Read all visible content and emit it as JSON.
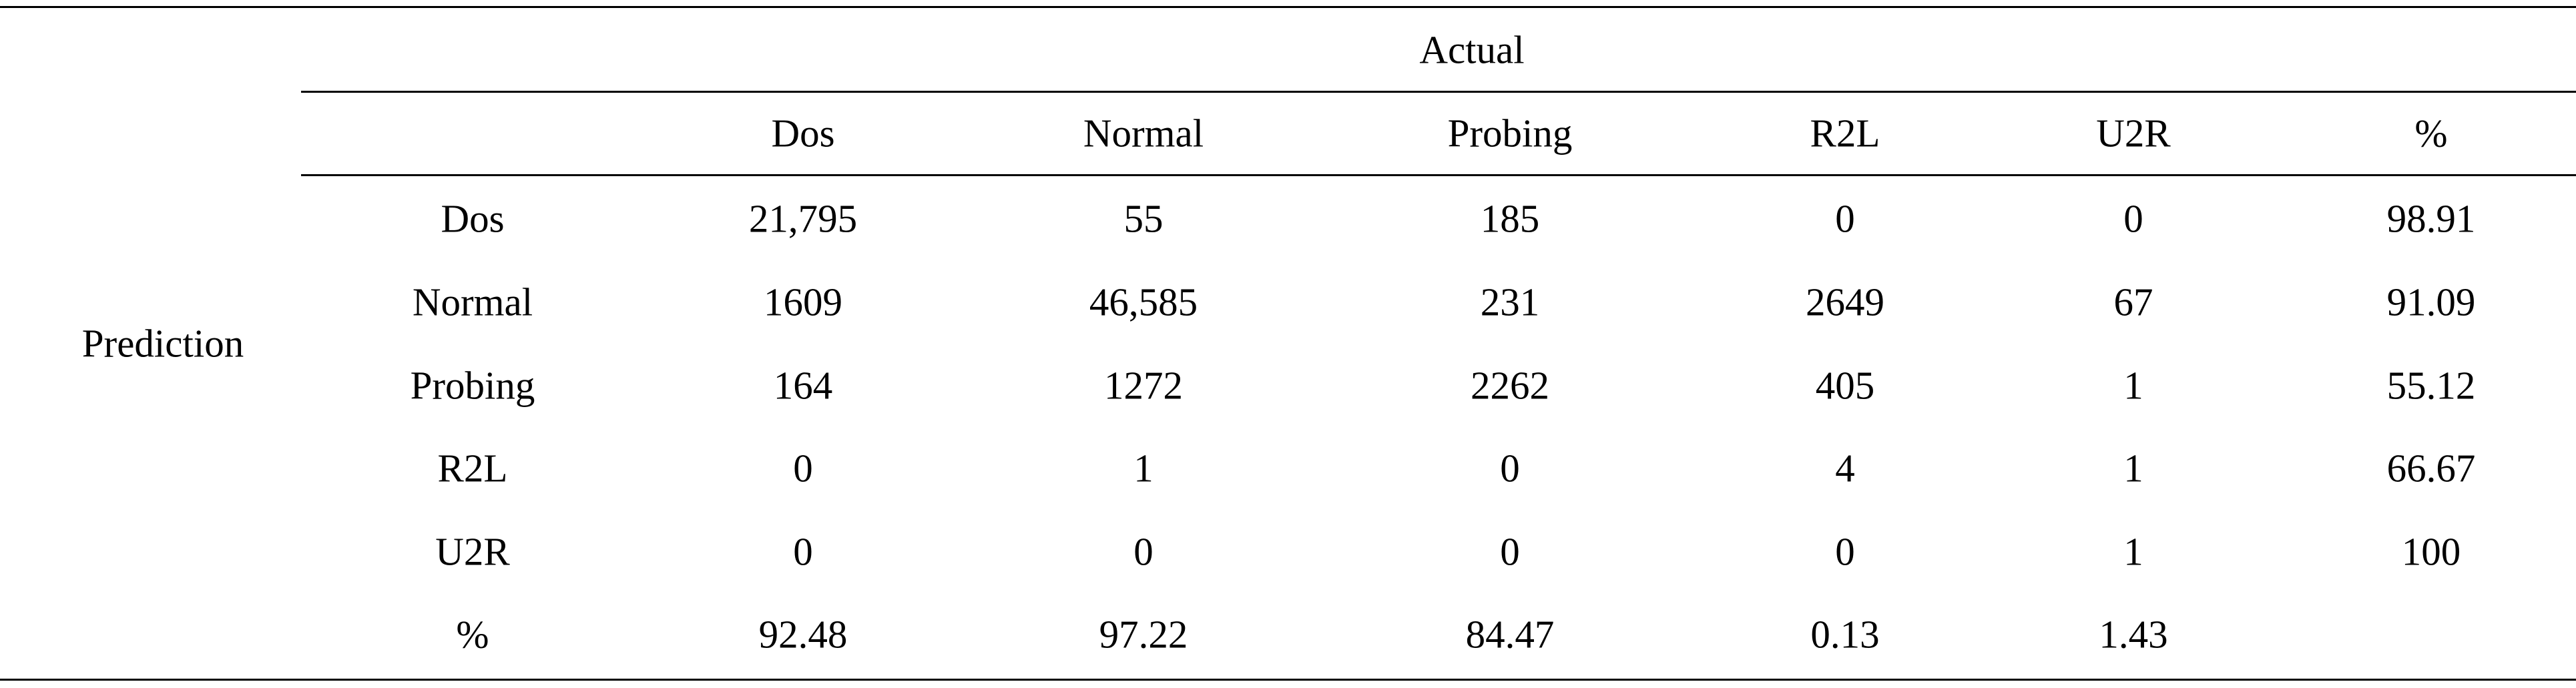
{
  "table": {
    "corner_label": "Prediction",
    "column_group_label": "Actual",
    "column_headers": [
      "Dos",
      "Normal",
      "Probing",
      "R2L",
      "U2R",
      "%"
    ],
    "rows": [
      {
        "label": "Dos",
        "cells": [
          "21,795",
          "55",
          "185",
          "0",
          "0",
          "98.91"
        ]
      },
      {
        "label": "Normal",
        "cells": [
          "1609",
          "46,585",
          "231",
          "2649",
          "67",
          "91.09"
        ]
      },
      {
        "label": "Probing",
        "cells": [
          "164",
          "1272",
          "2262",
          "405",
          "1",
          "55.12"
        ]
      },
      {
        "label": "R2L",
        "cells": [
          "0",
          "1",
          "0",
          "4",
          "1",
          "66.67"
        ]
      },
      {
        "label": "U2R",
        "cells": [
          "0",
          "0",
          "0",
          "0",
          "1",
          "100"
        ]
      },
      {
        "label": "%",
        "cells": [
          "92.48",
          "97.22",
          "84.47",
          "0.13",
          "1.43",
          ""
        ]
      }
    ]
  }
}
